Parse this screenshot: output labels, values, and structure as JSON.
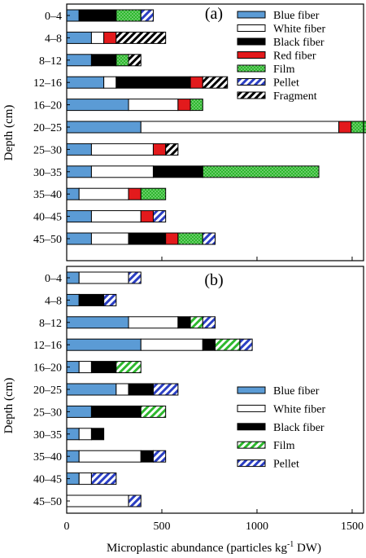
{
  "chart_data": [
    {
      "type": "bar",
      "stacked": true,
      "orientation": "horizontal",
      "panel_label": "(a)",
      "categories": [
        "0–4",
        "4–8",
        "8–12",
        "12–16",
        "16–20",
        "20–25",
        "25–30",
        "30–35",
        "35–40",
        "40–45",
        "45–50"
      ],
      "series": [
        {
          "name": "Blue fiber",
          "color": "#5b9bd5",
          "pattern": "solid",
          "values": [
            65,
            130,
            130,
            195,
            325,
            390,
            130,
            130,
            65,
            130,
            130
          ]
        },
        {
          "name": "White fiber",
          "color": "#ffffff",
          "pattern": "solid",
          "values": [
            0,
            65,
            0,
            65,
            260,
            1040,
            325,
            325,
            260,
            260,
            195
          ]
        },
        {
          "name": "Black fiber",
          "color": "#000000",
          "pattern": "solid",
          "values": [
            195,
            0,
            130,
            390,
            0,
            0,
            0,
            260,
            0,
            0,
            195
          ]
        },
        {
          "name": "Red fiber",
          "color": "#e31a1c",
          "pattern": "solid",
          "values": [
            0,
            65,
            0,
            65,
            65,
            65,
            65,
            0,
            65,
            65,
            65
          ]
        },
        {
          "name": "Film",
          "color": "#2db82d",
          "pattern": "dots",
          "values": [
            130,
            0,
            65,
            0,
            65,
            195,
            0,
            610,
            130,
            0,
            130
          ]
        },
        {
          "name": "Pellet",
          "color": "#2b3fc4",
          "pattern": "stripes",
          "values": [
            65,
            0,
            0,
            0,
            0,
            0,
            0,
            0,
            0,
            65,
            65
          ]
        },
        {
          "name": "Fragment",
          "color": "#000000",
          "pattern": "stripes",
          "values": [
            0,
            260,
            65,
            130,
            0,
            65,
            65,
            0,
            0,
            0,
            0
          ]
        }
      ],
      "ylabel": "Depth (cm)",
      "xlim": [
        0,
        1560
      ],
      "xticks": [
        0,
        500,
        1000,
        1500
      ],
      "legend": "top-right",
      "grid": false
    },
    {
      "type": "bar",
      "stacked": true,
      "orientation": "horizontal",
      "panel_label": "(b)",
      "categories": [
        "0–4",
        "4–8",
        "8–12",
        "12–16",
        "16–20",
        "20–25",
        "25–30",
        "30–35",
        "35–40",
        "40–45",
        "45–50"
      ],
      "series": [
        {
          "name": "Blue fiber",
          "color": "#5b9bd5",
          "pattern": "solid",
          "values": [
            65,
            65,
            325,
            390,
            65,
            260,
            130,
            65,
            65,
            65,
            0
          ]
        },
        {
          "name": "White fiber",
          "color": "#ffffff",
          "pattern": "solid",
          "values": [
            260,
            0,
            260,
            325,
            65,
            65,
            0,
            65,
            325,
            65,
            325
          ]
        },
        {
          "name": "Black fiber",
          "color": "#000000",
          "pattern": "solid",
          "values": [
            0,
            130,
            65,
            65,
            130,
            130,
            260,
            65,
            65,
            0,
            0
          ]
        },
        {
          "name": "Film",
          "color": "#2db82d",
          "pattern": "stripes",
          "values": [
            0,
            0,
            65,
            130,
            130,
            0,
            130,
            0,
            0,
            0,
            0
          ]
        },
        {
          "name": "Pellet",
          "color": "#2b3fc4",
          "pattern": "stripes",
          "values": [
            65,
            65,
            65,
            65,
            0,
            130,
            0,
            0,
            65,
            130,
            65
          ]
        }
      ],
      "ylabel": "Depth (cm)",
      "xlabel": "Microplastic abundance (particles kg⁻¹ DW)",
      "xlim": [
        0,
        1560
      ],
      "xticks": [
        0,
        500,
        1000,
        1500
      ],
      "legend": "bottom-right",
      "grid": false
    }
  ]
}
